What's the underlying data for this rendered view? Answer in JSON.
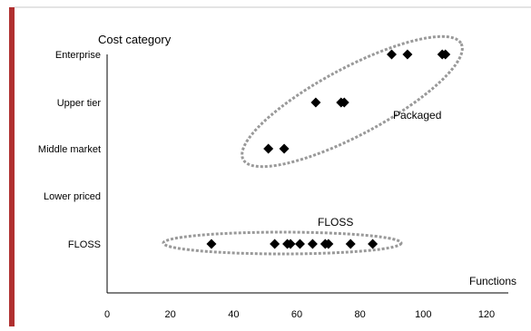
{
  "chart_data": {
    "type": "scatter",
    "ylabel": "Cost category",
    "xlabel": "Functions",
    "xlim": [
      0,
      120
    ],
    "x_ticks": [
      0,
      20,
      40,
      60,
      80,
      100,
      120
    ],
    "y_categories": [
      "FLOSS",
      "Lower priced",
      "Middle market",
      "Upper tier",
      "Enterprise"
    ],
    "series": [
      {
        "points": [
          {
            "x": 90,
            "y": "Enterprise"
          },
          {
            "x": 95,
            "y": "Enterprise"
          },
          {
            "x": 106,
            "y": "Enterprise"
          },
          {
            "x": 107,
            "y": "Enterprise"
          },
          {
            "x": 66,
            "y": "Upper tier"
          },
          {
            "x": 74,
            "y": "Upper tier"
          },
          {
            "x": 75,
            "y": "Upper tier"
          },
          {
            "x": 51,
            "y": "Middle market"
          },
          {
            "x": 56,
            "y": "Middle market"
          },
          {
            "x": 33,
            "y": "FLOSS"
          },
          {
            "x": 53,
            "y": "FLOSS"
          },
          {
            "x": 57,
            "y": "FLOSS"
          },
          {
            "x": 58,
            "y": "FLOSS"
          },
          {
            "x": 61,
            "y": "FLOSS"
          },
          {
            "x": 65,
            "y": "FLOSS"
          },
          {
            "x": 69,
            "y": "FLOSS"
          },
          {
            "x": 70,
            "y": "FLOSS"
          },
          {
            "x": 77,
            "y": "FLOSS"
          },
          {
            "x": 84,
            "y": "FLOSS"
          }
        ]
      }
    ],
    "annotations": [
      "Packaged",
      "FLOSS"
    ],
    "grid": false,
    "legend": "none",
    "colors": {
      "marker": "#000000",
      "ellipse": "#999999",
      "left_bar": "#b03030",
      "axis": "#000000"
    }
  }
}
